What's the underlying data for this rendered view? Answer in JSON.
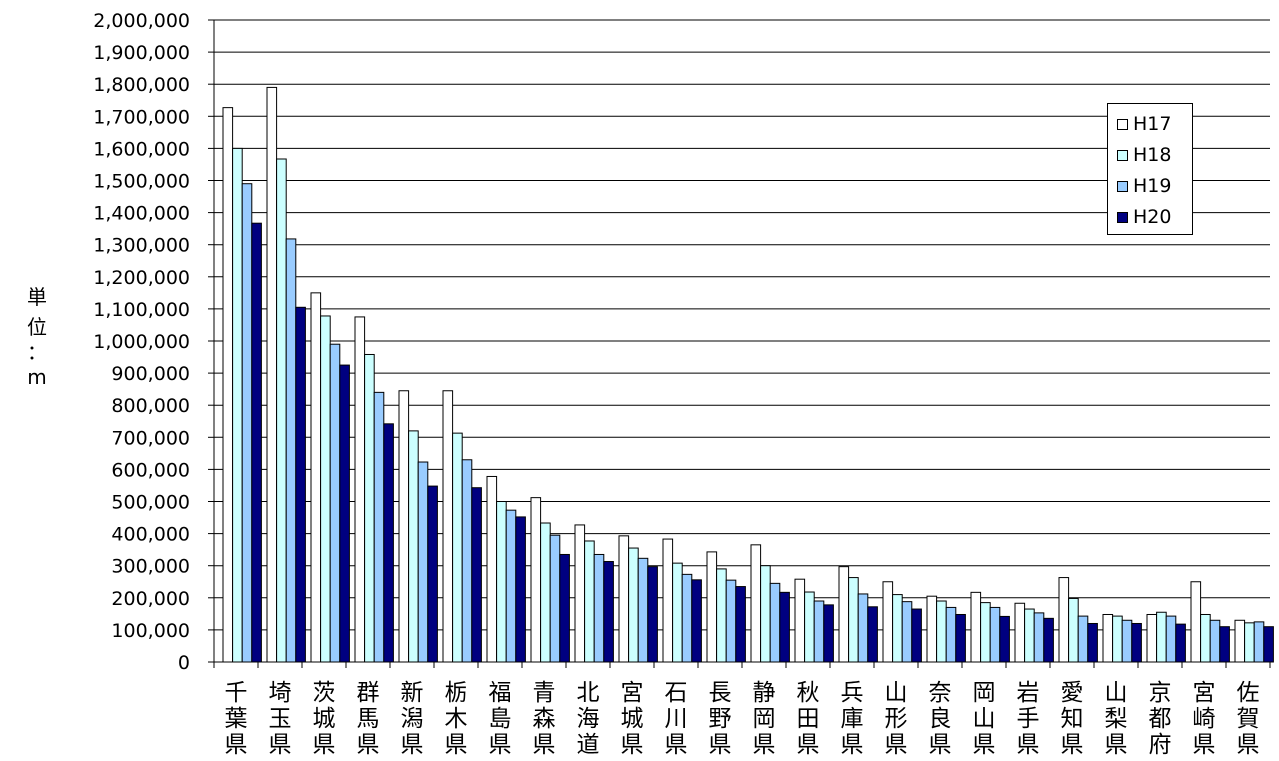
{
  "chart_data": {
    "type": "bar",
    "title": "",
    "xlabel": "",
    "ylabel": "単位：m",
    "ylim": [
      0,
      2000000
    ],
    "y_step": 100000,
    "grid": true,
    "legend_position": "top-right",
    "categories": [
      "千葉県",
      "埼玉県",
      "茨城県",
      "群馬県",
      "新潟県",
      "栃木県",
      "福島県",
      "青森県",
      "北海道",
      "宮城県",
      "石川県",
      "長野県",
      "静岡県",
      "秋田県",
      "兵庫県",
      "山形県",
      "奈良県",
      "岡山県",
      "岩手県",
      "愛知県",
      "山梨県",
      "京都府",
      "宮崎県",
      "佐賀県"
    ],
    "y_tick_labels": [
      "0",
      "100,000",
      "200,000",
      "300,000",
      "400,000",
      "500,000",
      "600,000",
      "700,000",
      "800,000",
      "900,000",
      "1,000,000",
      "1,100,000",
      "1,200,000",
      "1,300,000",
      "1,400,000",
      "1,500,000",
      "1,600,000",
      "1,700,000",
      "1,800,000",
      "1,900,000",
      "2,000,000"
    ],
    "series": [
      {
        "name": "H17",
        "color": "#ffffff",
        "values": [
          1727000,
          1790000,
          1150000,
          1075000,
          845000,
          845000,
          578000,
          512000,
          427000,
          393000,
          383000,
          343000,
          365000,
          258000,
          297000,
          250000,
          205000,
          217000,
          183000,
          263000,
          148000,
          148000,
          250000,
          130000
        ]
      },
      {
        "name": "H18",
        "color": "#ccffff",
        "values": [
          1600000,
          1567000,
          1078000,
          958000,
          720000,
          713000,
          500000,
          433000,
          377000,
          355000,
          308000,
          290000,
          300000,
          218000,
          263000,
          210000,
          190000,
          185000,
          165000,
          198000,
          143000,
          155000,
          148000,
          122000
        ]
      },
      {
        "name": "H19",
        "color": "#99ccff",
        "values": [
          1490000,
          1318000,
          990000,
          840000,
          623000,
          630000,
          473000,
          395000,
          335000,
          323000,
          273000,
          255000,
          245000,
          190000,
          212000,
          188000,
          170000,
          170000,
          153000,
          143000,
          130000,
          143000,
          130000,
          125000
        ]
      },
      {
        "name": "H20",
        "color": "#000080",
        "values": [
          1367000,
          1105000,
          925000,
          742000,
          548000,
          543000,
          452000,
          335000,
          313000,
          297000,
          256000,
          235000,
          217000,
          178000,
          172000,
          165000,
          148000,
          142000,
          136000,
          120000,
          120000,
          118000,
          110000,
          110000
        ]
      }
    ]
  }
}
